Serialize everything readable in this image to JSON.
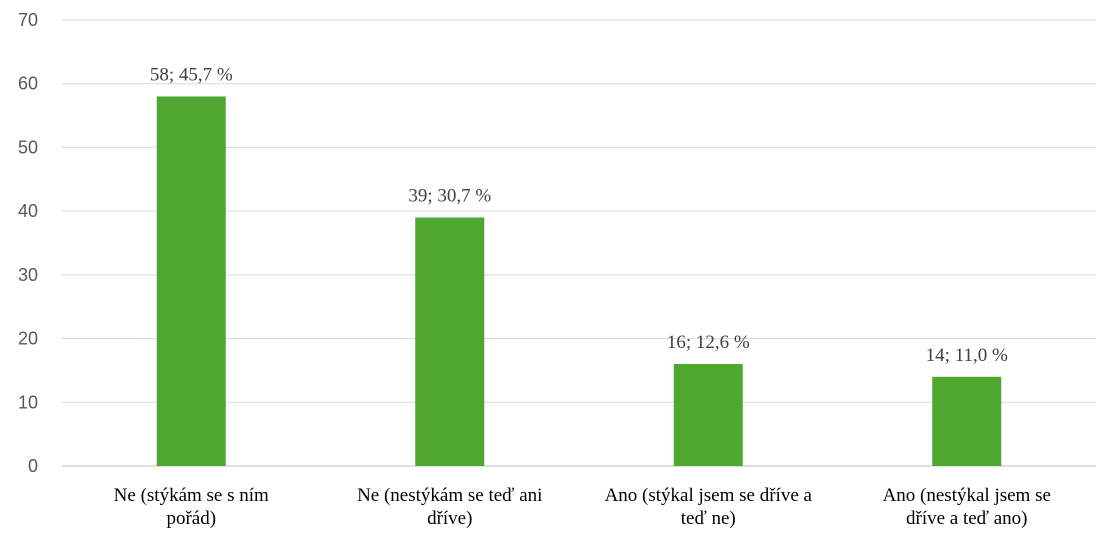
{
  "chart_data": {
    "type": "bar",
    "categories": [
      [
        "Ne (stýkám se s ním",
        "pořád)"
      ],
      [
        "Ne (nestýkám se teď ani",
        "dříve)"
      ],
      [
        "Ano (stýkal jsem se dříve a",
        "teď ne)"
      ],
      [
        "Ano (nestýkal jsem se",
        "dříve a teď ano)"
      ]
    ],
    "values": [
      58,
      39,
      16,
      14
    ],
    "data_labels": [
      "58; 45,7 %",
      "39; 30,7 %",
      "16; 12,6 %",
      "14; 11,0 %"
    ],
    "ylim": [
      0,
      70
    ],
    "yticks": [
      "0",
      "10",
      "20",
      "30",
      "40",
      "50",
      "60",
      "70"
    ],
    "bar_color": "#4ea72e",
    "grid": true,
    "legend": "none",
    "title": "",
    "xlabel": "",
    "ylabel": ""
  }
}
